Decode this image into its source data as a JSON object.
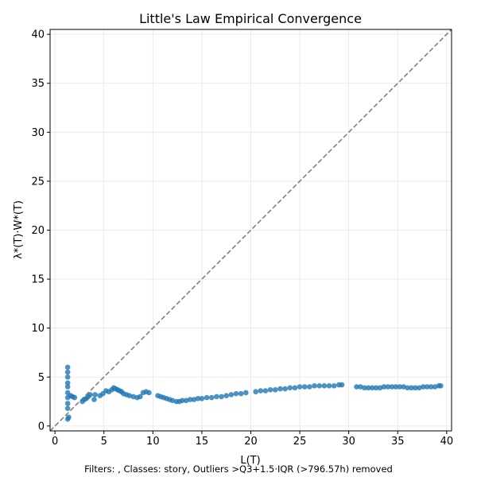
{
  "chart_data": {
    "type": "scatter",
    "title": "Little's Law Empirical Convergence",
    "xlabel": "L(T)",
    "ylabel": "λ*(T)·W*(T)",
    "xlim": [
      -0.5,
      40.5
    ],
    "ylim": [
      -0.5,
      40.5
    ],
    "xticks": [
      0,
      5,
      10,
      15,
      20,
      25,
      30,
      35,
      40
    ],
    "yticks": [
      0,
      5,
      10,
      15,
      20,
      25,
      30,
      35,
      40
    ],
    "grid": true,
    "reference_line": {
      "name": "y = x",
      "style": "dashed",
      "color": "#808080"
    },
    "point_color": "#1f77b4",
    "footnote": "Filters: , Classes: story, Outliers >Q3+1.5·IQR (>796.57h) removed",
    "series": [
      {
        "name": "observations",
        "points": [
          [
            1.3,
            0.7
          ],
          [
            1.3,
            1.8
          ],
          [
            1.3,
            2.3
          ],
          [
            1.3,
            2.9
          ],
          [
            1.3,
            3.4
          ],
          [
            1.3,
            4.0
          ],
          [
            1.3,
            4.4
          ],
          [
            1.3,
            5.0
          ],
          [
            1.3,
            5.5
          ],
          [
            1.3,
            6.0
          ],
          [
            1.4,
            0.9
          ],
          [
            1.6,
            3.1
          ],
          [
            1.8,
            3.0
          ],
          [
            2.0,
            2.9
          ],
          [
            2.8,
            2.5
          ],
          [
            3.0,
            2.7
          ],
          [
            3.2,
            2.8
          ],
          [
            3.4,
            3.0
          ],
          [
            3.6,
            3.2
          ],
          [
            4.0,
            2.7
          ],
          [
            4.1,
            3.2
          ],
          [
            4.6,
            3.1
          ],
          [
            4.9,
            3.3
          ],
          [
            5.2,
            3.6
          ],
          [
            5.5,
            3.5
          ],
          [
            5.8,
            3.7
          ],
          [
            6.0,
            3.9
          ],
          [
            6.2,
            3.8
          ],
          [
            6.4,
            3.7
          ],
          [
            6.6,
            3.6
          ],
          [
            6.8,
            3.5
          ],
          [
            7.0,
            3.3
          ],
          [
            7.3,
            3.2
          ],
          [
            7.6,
            3.1
          ],
          [
            8.0,
            3.0
          ],
          [
            8.4,
            2.9
          ],
          [
            8.7,
            3.0
          ],
          [
            9.0,
            3.4
          ],
          [
            9.3,
            3.5
          ],
          [
            9.6,
            3.4
          ],
          [
            10.5,
            3.1
          ],
          [
            10.8,
            3.0
          ],
          [
            11.1,
            2.9
          ],
          [
            11.4,
            2.8
          ],
          [
            11.7,
            2.7
          ],
          [
            12.0,
            2.6
          ],
          [
            12.4,
            2.5
          ],
          [
            12.7,
            2.5
          ],
          [
            13.0,
            2.6
          ],
          [
            13.4,
            2.6
          ],
          [
            13.8,
            2.7
          ],
          [
            14.2,
            2.7
          ],
          [
            14.6,
            2.8
          ],
          [
            15.0,
            2.8
          ],
          [
            15.5,
            2.9
          ],
          [
            16.0,
            2.9
          ],
          [
            16.5,
            3.0
          ],
          [
            17.0,
            3.0
          ],
          [
            17.5,
            3.1
          ],
          [
            18.0,
            3.2
          ],
          [
            18.5,
            3.3
          ],
          [
            19.0,
            3.3
          ],
          [
            19.5,
            3.4
          ],
          [
            20.5,
            3.5
          ],
          [
            21.0,
            3.6
          ],
          [
            21.5,
            3.6
          ],
          [
            22.0,
            3.7
          ],
          [
            22.5,
            3.7
          ],
          [
            23.0,
            3.8
          ],
          [
            23.5,
            3.8
          ],
          [
            24.0,
            3.9
          ],
          [
            24.5,
            3.9
          ],
          [
            25.0,
            4.0
          ],
          [
            25.5,
            4.0
          ],
          [
            26.0,
            4.0
          ],
          [
            26.5,
            4.1
          ],
          [
            27.0,
            4.1
          ],
          [
            27.5,
            4.1
          ],
          [
            28.0,
            4.1
          ],
          [
            28.5,
            4.1
          ],
          [
            29.0,
            4.2
          ],
          [
            29.3,
            4.2
          ],
          [
            30.8,
            4.0
          ],
          [
            31.2,
            4.0
          ],
          [
            31.6,
            3.9
          ],
          [
            32.0,
            3.9
          ],
          [
            32.4,
            3.9
          ],
          [
            32.8,
            3.9
          ],
          [
            33.2,
            3.9
          ],
          [
            33.6,
            4.0
          ],
          [
            34.0,
            4.0
          ],
          [
            34.4,
            4.0
          ],
          [
            34.8,
            4.0
          ],
          [
            35.2,
            4.0
          ],
          [
            35.6,
            4.0
          ],
          [
            36.0,
            3.9
          ],
          [
            36.4,
            3.9
          ],
          [
            36.8,
            3.9
          ],
          [
            37.2,
            3.9
          ],
          [
            37.6,
            4.0
          ],
          [
            38.0,
            4.0
          ],
          [
            38.4,
            4.0
          ],
          [
            38.8,
            4.0
          ],
          [
            39.2,
            4.1
          ],
          [
            39.4,
            4.1
          ]
        ]
      }
    ]
  }
}
